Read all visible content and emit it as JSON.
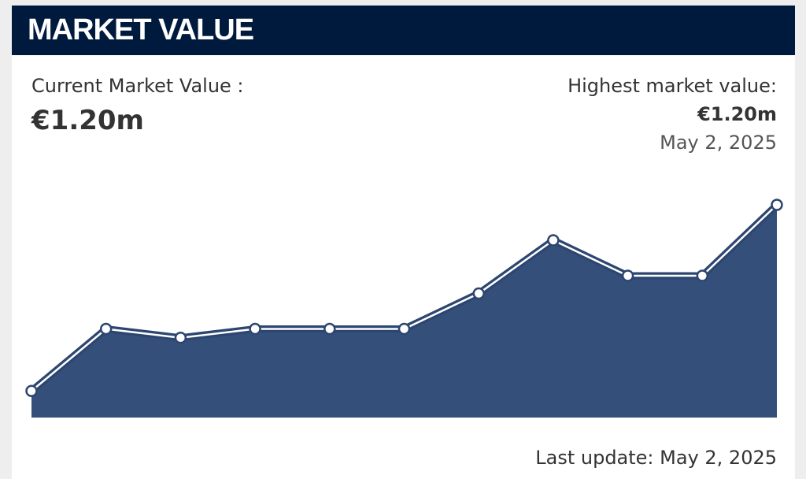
{
  "header": {
    "title": "MARKET VALUE"
  },
  "current": {
    "label": "Current Market Value :",
    "value": "€1.20m"
  },
  "highest": {
    "label": "Highest market value:",
    "value": "€1.20m",
    "date": "May 2, 2025"
  },
  "last_update": "Last update: May 2, 2025",
  "chart_data": {
    "type": "area",
    "values": [
      0.15,
      0.5,
      0.45,
      0.5,
      0.5,
      0.5,
      0.7,
      1.0,
      0.8,
      0.8,
      1.2
    ],
    "ylim": [
      0,
      1.2
    ],
    "color": "#34507a",
    "line_color": "#2c4670"
  }
}
